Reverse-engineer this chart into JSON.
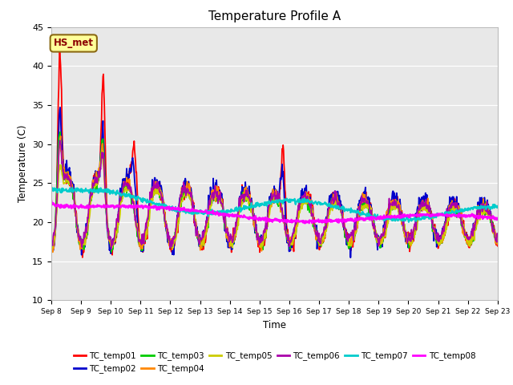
{
  "title": "Temperature Profile A",
  "xlabel": "Time",
  "ylabel": "Temperature (C)",
  "ylim": [
    10,
    45
  ],
  "yticks": [
    10,
    15,
    20,
    25,
    30,
    35,
    40,
    45
  ],
  "annotation_text": "HS_met",
  "annotation_color": "#8B0000",
  "annotation_bg": "#FFFF99",
  "annotation_border": "#8B6914",
  "axes_bg_color": "#E8E8E8",
  "series_colors": {
    "TC_temp01": "#FF0000",
    "TC_temp02": "#0000CC",
    "TC_temp03": "#00CC00",
    "TC_temp04": "#FF8800",
    "TC_temp05": "#CCCC00",
    "TC_temp06": "#AA00AA",
    "TC_temp07": "#00CCCC",
    "TC_temp08": "#FF00FF"
  },
  "xtick_labels": [
    "Sep 8",
    "Sep 9",
    "Sep 10",
    "Sep 11",
    "Sep 12",
    "Sep 13",
    "Sep 14",
    "Sep 15",
    "Sep 16",
    "Sep 17",
    "Sep 18",
    "Sep 19",
    "Sep 20",
    "Sep 21",
    "Sep 22",
    "Sep 23"
  ],
  "num_points": 960,
  "num_days": 15
}
